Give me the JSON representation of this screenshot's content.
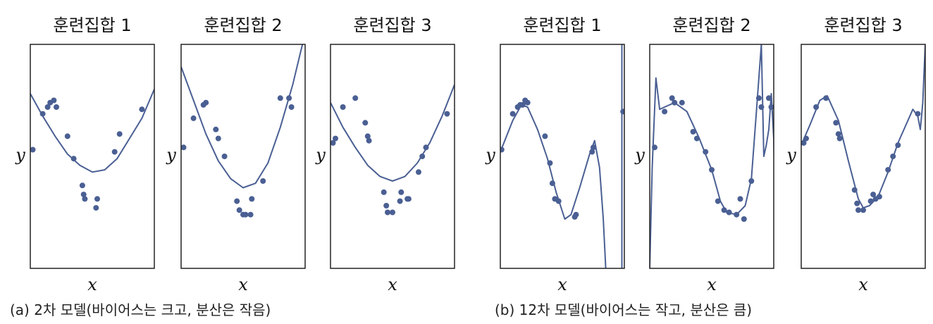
{
  "colors": {
    "series": "#4a5f93",
    "frame": "#222222",
    "background": "#ffffff"
  },
  "captions": {
    "left": "(a) 2차 모델(바이어스는 크고, 분산은 작음)",
    "right": "(b) 12차 모델(바이어스는 작고, 분산은 큼)"
  },
  "chart_data": [
    {
      "type": "scatter",
      "title": "훈련집합 1",
      "xlabel": "x",
      "ylabel": "y",
      "xlim": [
        0,
        1
      ],
      "ylim": [
        0,
        1
      ],
      "points": [
        [
          0.02,
          0.53
        ],
        [
          0.1,
          0.69
        ],
        [
          0.14,
          0.72
        ],
        [
          0.16,
          0.74
        ],
        [
          0.19,
          0.75
        ],
        [
          0.21,
          0.72
        ],
        [
          0.3,
          0.59
        ],
        [
          0.35,
          0.49
        ],
        [
          0.42,
          0.37
        ],
        [
          0.43,
          0.33
        ],
        [
          0.44,
          0.31
        ],
        [
          0.53,
          0.27
        ],
        [
          0.54,
          0.31
        ],
        [
          0.68,
          0.52
        ],
        [
          0.72,
          0.6
        ],
        [
          0.9,
          0.71
        ]
      ],
      "fit_curve": [
        [
          0,
          0.78
        ],
        [
          0.1,
          0.68
        ],
        [
          0.2,
          0.59
        ],
        [
          0.3,
          0.51
        ],
        [
          0.4,
          0.46
        ],
        [
          0.5,
          0.43
        ],
        [
          0.6,
          0.44
        ],
        [
          0.7,
          0.49
        ],
        [
          0.8,
          0.58
        ],
        [
          0.9,
          0.67
        ],
        [
          1,
          0.8
        ]
      ]
    },
    {
      "type": "scatter",
      "title": "훈련집합 2",
      "xlabel": "x",
      "ylabel": "y",
      "xlim": [
        0,
        1
      ],
      "ylim": [
        0,
        1
      ],
      "points": [
        [
          0.02,
          0.54
        ],
        [
          0.1,
          0.67
        ],
        [
          0.18,
          0.73
        ],
        [
          0.2,
          0.74
        ],
        [
          0.28,
          0.62
        ],
        [
          0.3,
          0.58
        ],
        [
          0.35,
          0.5
        ],
        [
          0.45,
          0.3
        ],
        [
          0.47,
          0.26
        ],
        [
          0.5,
          0.24
        ],
        [
          0.52,
          0.24
        ],
        [
          0.56,
          0.24
        ],
        [
          0.57,
          0.31
        ],
        [
          0.66,
          0.39
        ],
        [
          0.8,
          0.76
        ],
        [
          0.87,
          0.76
        ],
        [
          0.89,
          0.72
        ]
      ],
      "fit_curve": [
        [
          0,
          0.9
        ],
        [
          0.1,
          0.75
        ],
        [
          0.2,
          0.6
        ],
        [
          0.3,
          0.48
        ],
        [
          0.4,
          0.4
        ],
        [
          0.5,
          0.36
        ],
        [
          0.6,
          0.38
        ],
        [
          0.7,
          0.47
        ],
        [
          0.8,
          0.63
        ],
        [
          0.9,
          0.82
        ],
        [
          1,
          1.05
        ]
      ]
    },
    {
      "type": "scatter",
      "title": "훈련집합 3",
      "xlabel": "x",
      "ylabel": "y",
      "xlim": [
        0,
        1
      ],
      "ylim": [
        0,
        1
      ],
      "points": [
        [
          0.02,
          0.56
        ],
        [
          0.04,
          0.58
        ],
        [
          0.1,
          0.72
        ],
        [
          0.2,
          0.76
        ],
        [
          0.28,
          0.65
        ],
        [
          0.3,
          0.59
        ],
        [
          0.31,
          0.57
        ],
        [
          0.43,
          0.34
        ],
        [
          0.45,
          0.28
        ],
        [
          0.46,
          0.25
        ],
        [
          0.5,
          0.25
        ],
        [
          0.56,
          0.3
        ],
        [
          0.57,
          0.34
        ],
        [
          0.62,
          0.31
        ],
        [
          0.63,
          0.31
        ],
        [
          0.71,
          0.43
        ],
        [
          0.74,
          0.5
        ],
        [
          0.77,
          0.54
        ],
        [
          0.94,
          0.69
        ]
      ],
      "fit_curve": [
        [
          0,
          0.74
        ],
        [
          0.1,
          0.63
        ],
        [
          0.2,
          0.54
        ],
        [
          0.3,
          0.46
        ],
        [
          0.4,
          0.41
        ],
        [
          0.5,
          0.39
        ],
        [
          0.6,
          0.41
        ],
        [
          0.7,
          0.47
        ],
        [
          0.8,
          0.56
        ],
        [
          0.9,
          0.68
        ],
        [
          1,
          0.82
        ]
      ]
    },
    {
      "type": "scatter",
      "title": "훈련집합 1",
      "xlabel": "x",
      "ylabel": "y",
      "xlim": [
        0,
        1
      ],
      "ylim": [
        0,
        1
      ],
      "points": [
        [
          0.01,
          0.53
        ],
        [
          0.1,
          0.69
        ],
        [
          0.14,
          0.72
        ],
        [
          0.16,
          0.73
        ],
        [
          0.18,
          0.73
        ],
        [
          0.2,
          0.75
        ],
        [
          0.22,
          0.74
        ],
        [
          0.36,
          0.59
        ],
        [
          0.4,
          0.47
        ],
        [
          0.42,
          0.38
        ],
        [
          0.44,
          0.31
        ],
        [
          0.47,
          0.3
        ],
        [
          0.6,
          0.23
        ],
        [
          0.61,
          0.24
        ],
        [
          0.74,
          0.52
        ],
        [
          0.75,
          0.54
        ],
        [
          0.99,
          0.7
        ]
      ],
      "fit_curve": [
        [
          0,
          0.52
        ],
        [
          0.1,
          0.66
        ],
        [
          0.17,
          0.73
        ],
        [
          0.22,
          0.72
        ],
        [
          0.3,
          0.62
        ],
        [
          0.38,
          0.49
        ],
        [
          0.45,
          0.34
        ],
        [
          0.52,
          0.22
        ],
        [
          0.57,
          0.24
        ],
        [
          0.64,
          0.36
        ],
        [
          0.72,
          0.51
        ],
        [
          0.76,
          0.57
        ],
        [
          0.8,
          0.45
        ],
        [
          0.83,
          0.22
        ],
        [
          0.85,
          0.0
        ]
      ],
      "extra_curve": [
        [
          0.98,
          1.0
        ],
        [
          0.98,
          0.0
        ]
      ]
    },
    {
      "type": "scatter",
      "title": "훈련집합 2",
      "xlabel": "x",
      "ylabel": "y",
      "xlim": [
        0,
        1
      ],
      "ylim": [
        0,
        1
      ],
      "points": [
        [
          0.04,
          0.54
        ],
        [
          0.12,
          0.7
        ],
        [
          0.18,
          0.76
        ],
        [
          0.2,
          0.74
        ],
        [
          0.26,
          0.74
        ],
        [
          0.35,
          0.61
        ],
        [
          0.38,
          0.58
        ],
        [
          0.45,
          0.52
        ],
        [
          0.5,
          0.44
        ],
        [
          0.55,
          0.3
        ],
        [
          0.6,
          0.26
        ],
        [
          0.64,
          0.25
        ],
        [
          0.7,
          0.24
        ],
        [
          0.73,
          0.31
        ],
        [
          0.76,
          0.22
        ],
        [
          0.82,
          0.39
        ],
        [
          0.88,
          0.76
        ],
        [
          0.9,
          0.72
        ],
        [
          0.96,
          0.76
        ],
        [
          0.98,
          0.72
        ]
      ],
      "fit_curve": [
        [
          0,
          0.0
        ],
        [
          0.02,
          0.45
        ],
        [
          0.05,
          0.85
        ],
        [
          0.08,
          0.71
        ],
        [
          0.12,
          0.72
        ],
        [
          0.2,
          0.74
        ],
        [
          0.3,
          0.7
        ],
        [
          0.4,
          0.58
        ],
        [
          0.5,
          0.44
        ],
        [
          0.57,
          0.3
        ],
        [
          0.62,
          0.25
        ],
        [
          0.7,
          0.24
        ],
        [
          0.77,
          0.28
        ],
        [
          0.82,
          0.4
        ],
        [
          0.86,
          0.7
        ],
        [
          0.9,
          1.0
        ],
        [
          0.92,
          0.5
        ],
        [
          0.94,
          0.55
        ],
        [
          0.96,
          0.62
        ],
        [
          0.98,
          0.78
        ],
        [
          1.0,
          0.58
        ],
        [
          1.02,
          0.0
        ]
      ]
    },
    {
      "type": "scatter",
      "title": "훈련집합 3",
      "xlabel": "x",
      "ylabel": "y",
      "xlim": [
        0,
        1
      ],
      "ylim": [
        0,
        1
      ],
      "points": [
        [
          0.02,
          0.56
        ],
        [
          0.04,
          0.58
        ],
        [
          0.12,
          0.72
        ],
        [
          0.2,
          0.76
        ],
        [
          0.28,
          0.65
        ],
        [
          0.3,
          0.6
        ],
        [
          0.31,
          0.58
        ],
        [
          0.43,
          0.35
        ],
        [
          0.45,
          0.29
        ],
        [
          0.46,
          0.26
        ],
        [
          0.5,
          0.26
        ],
        [
          0.56,
          0.3
        ],
        [
          0.58,
          0.33
        ],
        [
          0.6,
          0.31
        ],
        [
          0.63,
          0.32
        ],
        [
          0.7,
          0.44
        ],
        [
          0.74,
          0.5
        ],
        [
          0.78,
          0.55
        ],
        [
          0.94,
          0.69
        ]
      ],
      "fit_curve": [
        [
          0,
          0.55
        ],
        [
          0.07,
          0.64
        ],
        [
          0.15,
          0.75
        ],
        [
          0.21,
          0.77
        ],
        [
          0.3,
          0.66
        ],
        [
          0.38,
          0.48
        ],
        [
          0.46,
          0.31
        ],
        [
          0.5,
          0.27
        ],
        [
          0.55,
          0.28
        ],
        [
          0.62,
          0.32
        ],
        [
          0.7,
          0.43
        ],
        [
          0.78,
          0.56
        ],
        [
          0.86,
          0.66
        ],
        [
          0.9,
          0.71
        ],
        [
          0.94,
          0.68
        ],
        [
          0.96,
          0.62
        ],
        [
          0.98,
          0.74
        ],
        [
          1.0,
          1.0
        ]
      ]
    }
  ]
}
